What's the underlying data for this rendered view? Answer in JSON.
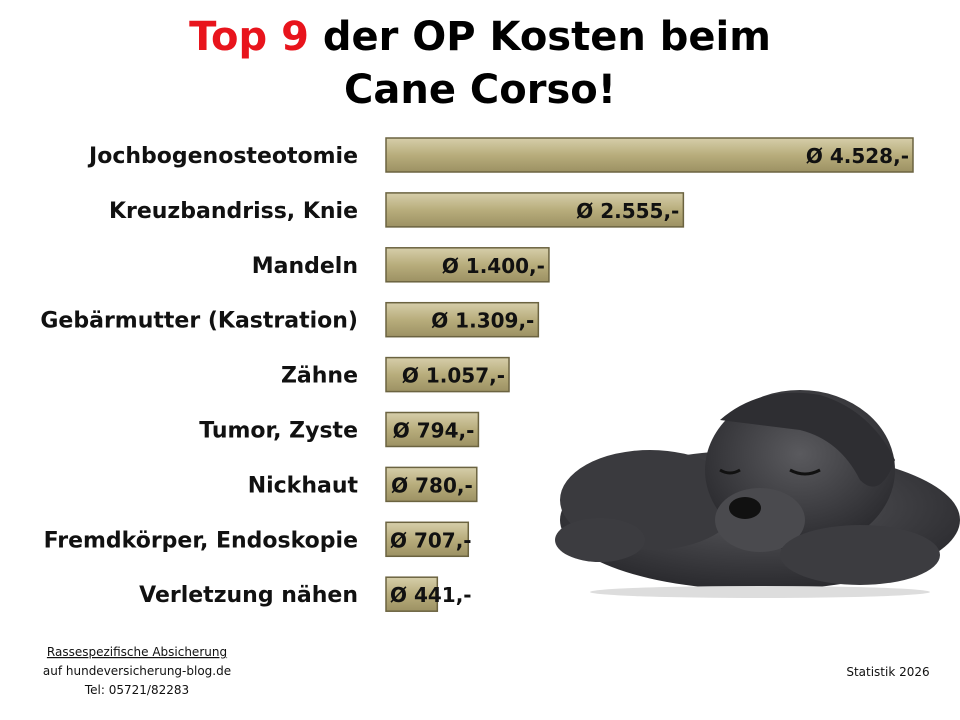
{
  "chart_data": {
    "type": "bar",
    "orientation": "horizontal",
    "title_highlight": "Top 9",
    "title_line1": "der OP Kosten beim",
    "title_line2": "Cane Corso!",
    "categories": [
      "Jochbogenosteotomie",
      "Kreuzbandriss, Knie",
      "Mandeln",
      "Gebärmutter (Kastration)",
      "Zähne",
      "Tumor, Zyste",
      "Nickhaut",
      "Fremdkörper, Endoskopie",
      "Verletzung nähen"
    ],
    "values": [
      4528,
      2555,
      1400,
      1309,
      1057,
      794,
      780,
      707,
      441
    ],
    "value_labels": [
      "Ø 4.528,-",
      "Ø 2.555,-",
      "Ø 1.400,-",
      "Ø 1.309,-",
      "Ø 1.057,-",
      "Ø 794,-",
      "Ø 780,-",
      "Ø 707,-",
      "Ø 441,-"
    ],
    "color": "#b8ad7c"
  },
  "footer": {
    "source_line1": "Rassespezifische  Absicherung",
    "source_line2": "auf hundeversicherung-blog.de",
    "source_line3": "Tel: 05721/82283",
    "note": "Statistik 2026"
  }
}
